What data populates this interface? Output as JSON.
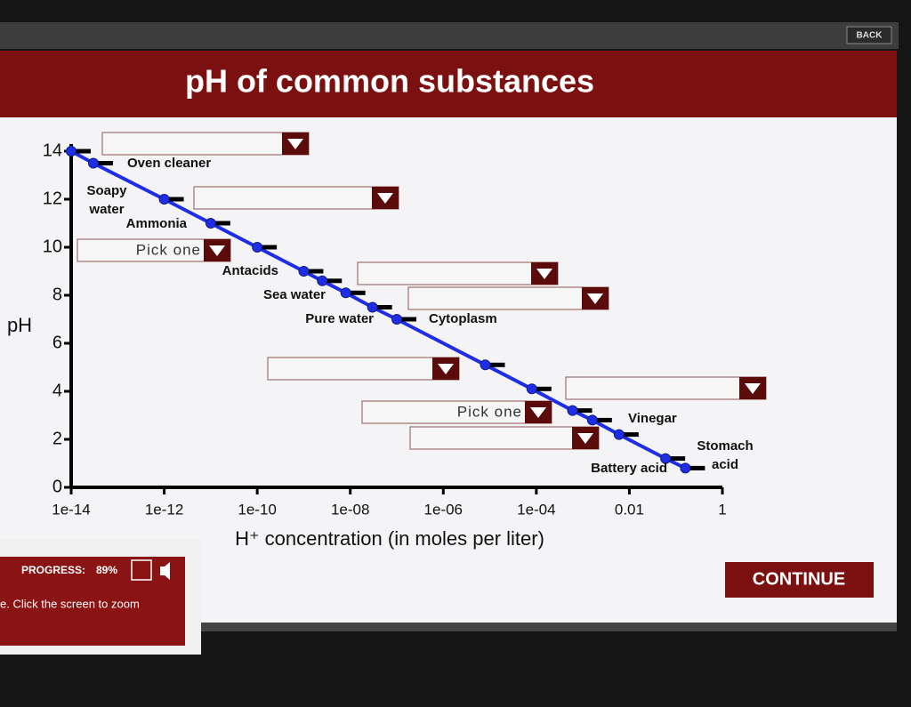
{
  "header": {
    "back_button": "BACK",
    "title": "pH of common substances"
  },
  "chart_data": {
    "type": "scatter",
    "x_label": "H⁺ concentration (in moles per liter)",
    "y_label": "pH",
    "x_scale": "log",
    "xlim": [
      1e-14,
      1
    ],
    "xticks": [
      1e-14,
      1e-12,
      1e-10,
      {
        "value": 1e-08,
        "label": "1e-08"
      },
      {
        "value": 1e-06,
        "label": "1e-06"
      },
      {
        "value": 0.0001,
        "label": "1e-04"
      },
      0.01,
      1
    ],
    "ylim": [
      0,
      14
    ],
    "yticks": [
      0,
      2,
      4,
      6,
      8,
      10,
      12,
      14
    ],
    "series": [
      {
        "color": "#1f2ee6",
        "x": [
          1e-14,
          3e-14,
          1e-12,
          1e-11,
          1e-10,
          1e-09,
          2.5e-09,
          8e-09,
          3e-08,
          1e-07,
          8e-06,
          8e-05,
          0.0006,
          0.0016,
          0.006,
          0.06,
          0.16
        ],
        "values": [
          14,
          13.5,
          12,
          11,
          10,
          9,
          8.6,
          8.1,
          7.5,
          7,
          5.1,
          4.1,
          3.2,
          2.8,
          2.2,
          1.2,
          0.8
        ]
      }
    ],
    "annotations": [
      {
        "lines": [
          "Oven cleaner"
        ]
      },
      {
        "lines": [
          "Soapy",
          "water"
        ]
      },
      {
        "lines": [
          "Ammonia"
        ]
      },
      {
        "lines": [
          "Antacids"
        ]
      },
      {
        "lines": [
          "Sea water"
        ]
      },
      {
        "lines": [
          "Pure water"
        ]
      },
      {
        "lines": [
          "Cytoplasm"
        ]
      },
      {
        "lines": [
          "Vinegar"
        ]
      },
      {
        "lines": [
          "Stomach",
          "acid"
        ]
      },
      {
        "lines": [
          "Battery acid"
        ]
      }
    ],
    "dropdown_labels": [
      "Pick one",
      "Pick one"
    ]
  },
  "footer": {
    "progress_label": "PROGRESS:",
    "progress_value": "89%",
    "hint": "e. Click the screen to zoom",
    "continue_button": "CONTINUE"
  }
}
